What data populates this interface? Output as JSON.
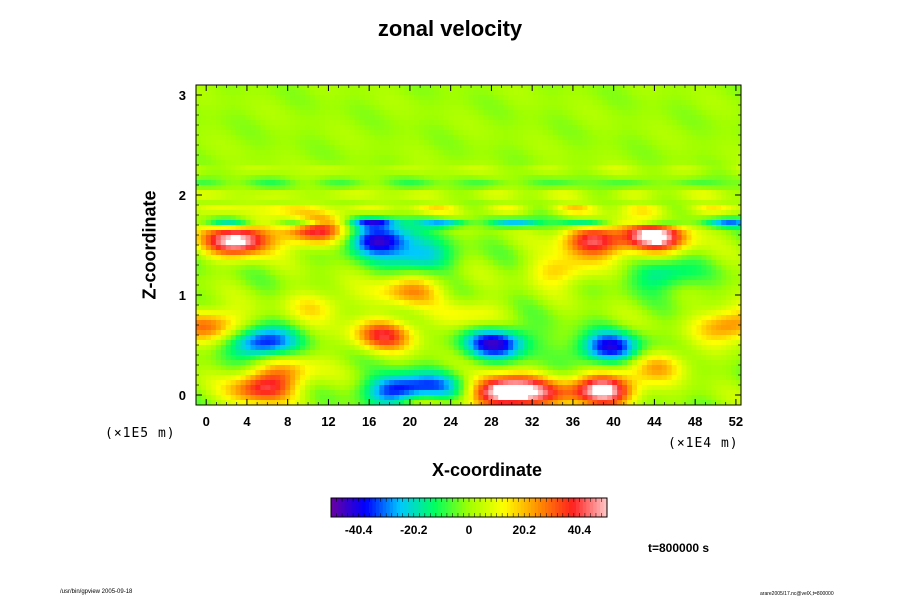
{
  "footer": {
    "left": "/usr/bin/gpview 2005-09-18",
    "right": "arare2005/17.nc@velX,t=800000"
  },
  "timestamp": "t=800000 s",
  "chart_data": {
    "type": "heatmap",
    "title": "zonal velocity",
    "xlabel": "X-coordinate",
    "ylabel": "Z-coordinate",
    "x_scale_note": "(×1E4 m)",
    "z_scale_note": "(×1E5 m)",
    "xlim": [
      -1,
      52.5
    ],
    "ylim": [
      -0.1,
      3.1
    ],
    "x_ticks": [
      0,
      4,
      8,
      12,
      16,
      20,
      24,
      28,
      32,
      36,
      40,
      44,
      48,
      52
    ],
    "y_ticks": [
      0,
      1,
      2,
      3
    ],
    "colorbar": {
      "ticks": [
        -40.4,
        -20.2,
        0,
        20.2,
        40.4
      ],
      "range": [
        -50.5,
        50.5
      ],
      "colors": [
        "#6a00a0",
        "#0000ff",
        "#00c8ff",
        "#00ff60",
        "#a0ff00",
        "#ffff00",
        "#ff9000",
        "#ff2020",
        "#ffc8c8"
      ]
    },
    "background_value": 0,
    "features": [
      {
        "x": 5.5,
        "z": 0.52,
        "value": -40
      },
      {
        "x": 28.5,
        "z": 0.52,
        "value": -42
      },
      {
        "x": 39.5,
        "z": 0.47,
        "value": -40
      },
      {
        "x": 5.5,
        "z": 0.07,
        "value": 38
      },
      {
        "x": 17.5,
        "z": 0.6,
        "value": 35
      },
      {
        "x": 32.5,
        "z": 0.02,
        "value": 30
      },
      {
        "x": 0.5,
        "z": 0.7,
        "value": 30
      },
      {
        "x": 51.5,
        "z": 0.7,
        "value": 30
      },
      {
        "x": 20,
        "z": 1.05,
        "value": 25
      },
      {
        "x": 44.5,
        "z": 0.3,
        "value": 20
      },
      {
        "x": 35,
        "z": 1.25,
        "value": 20
      },
      {
        "x": 17,
        "z": 1.55,
        "value": -45
      },
      {
        "x": 21,
        "z": 1.38,
        "value": -25
      },
      {
        "x": 3,
        "z": 1.55,
        "value": 55
      },
      {
        "x": 44,
        "z": 1.58,
        "value": 55
      },
      {
        "x": 38,
        "z": 1.55,
        "value": 40
      },
      {
        "x": 10.5,
        "z": 1.65,
        "value": 40
      },
      {
        "x": 19,
        "z": 0.04,
        "value": -45
      },
      {
        "x": 22.5,
        "z": 0.04,
        "value": -45
      },
      {
        "x": 21.5,
        "z": -0.02,
        "value": 40
      },
      {
        "x": 29,
        "z": 0.03,
        "value": 55
      },
      {
        "x": 39,
        "z": 0.05,
        "value": 55
      },
      {
        "x": 45,
        "z": 1.2,
        "value": -20
      },
      {
        "x": 11,
        "z": 0.9,
        "value": 15
      },
      {
        "x": 8,
        "z": 0.25,
        "value": 18
      },
      {
        "x": 26,
        "z": 0.8,
        "value": 12
      }
    ],
    "bands": [
      {
        "z": 1.72,
        "value": -35
      },
      {
        "z": 1.86,
        "value": 18
      },
      {
        "z": 2.0,
        "value": 12
      },
      {
        "z": 2.12,
        "value": -10
      },
      {
        "z": 2.26,
        "value": 8
      }
    ]
  }
}
